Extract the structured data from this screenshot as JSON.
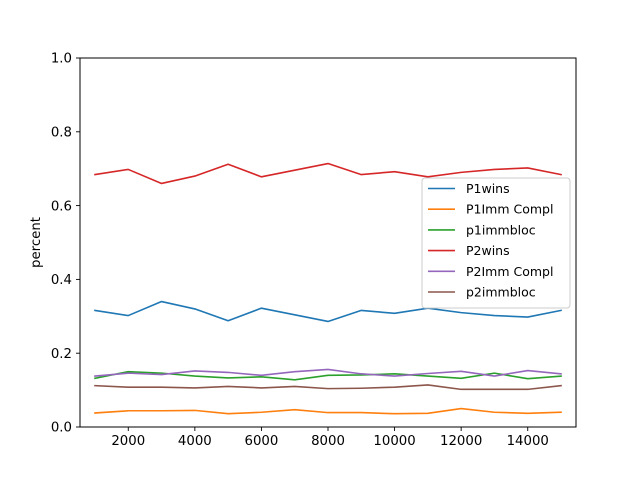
{
  "chart_data": {
    "type": "line",
    "title": "",
    "xlabel": "",
    "ylabel": "percent",
    "x": [
      1000,
      2000,
      3000,
      4000,
      5000,
      6000,
      7000,
      8000,
      9000,
      10000,
      11000,
      12000,
      13000,
      14000,
      15000
    ],
    "xlim": [
      550,
      15450
    ],
    "ylim": [
      0.0,
      1.0
    ],
    "xticks": [
      2000,
      4000,
      6000,
      8000,
      10000,
      12000,
      14000
    ],
    "xtick_labels": [
      "2000",
      "4000",
      "6000",
      "8000",
      "10000",
      "12000",
      "14000"
    ],
    "yticks": [
      0.0,
      0.2,
      0.4,
      0.6,
      0.8,
      1.0
    ],
    "ytick_labels": [
      "0.0",
      "0.2",
      "0.4",
      "0.6",
      "0.8",
      "1.0"
    ],
    "grid": false,
    "legend_position": "center-right",
    "series": [
      {
        "name": "P1wins",
        "color": "#1f77b4",
        "values": [
          0.316,
          0.302,
          0.34,
          0.32,
          0.288,
          0.322,
          0.304,
          0.286,
          0.316,
          0.308,
          0.322,
          0.31,
          0.302,
          0.298,
          0.316
        ]
      },
      {
        "name": "P1Imm Compl",
        "color": "#ff7f0e",
        "values": [
          0.038,
          0.044,
          0.044,
          0.045,
          0.036,
          0.04,
          0.047,
          0.039,
          0.039,
          0.036,
          0.037,
          0.05,
          0.04,
          0.037,
          0.04
        ]
      },
      {
        "name": "p1immbloc",
        "color": "#2ca02c",
        "values": [
          0.132,
          0.15,
          0.146,
          0.138,
          0.133,
          0.136,
          0.128,
          0.14,
          0.141,
          0.144,
          0.138,
          0.132,
          0.146,
          0.131,
          0.138
        ]
      },
      {
        "name": "P2wins",
        "color": "#d62728",
        "values": [
          0.684,
          0.698,
          0.66,
          0.68,
          0.712,
          0.678,
          0.696,
          0.714,
          0.684,
          0.692,
          0.678,
          0.69,
          0.698,
          0.702,
          0.684
        ]
      },
      {
        "name": "P2Imm Compl",
        "color": "#9467bd",
        "values": [
          0.138,
          0.146,
          0.142,
          0.152,
          0.148,
          0.14,
          0.15,
          0.156,
          0.144,
          0.138,
          0.145,
          0.151,
          0.138,
          0.153,
          0.144
        ]
      },
      {
        "name": "p2immbloc",
        "color": "#8c564b",
        "values": [
          0.112,
          0.108,
          0.108,
          0.106,
          0.11,
          0.106,
          0.11,
          0.104,
          0.105,
          0.108,
          0.114,
          0.102,
          0.102,
          0.102,
          0.112
        ]
      }
    ]
  }
}
